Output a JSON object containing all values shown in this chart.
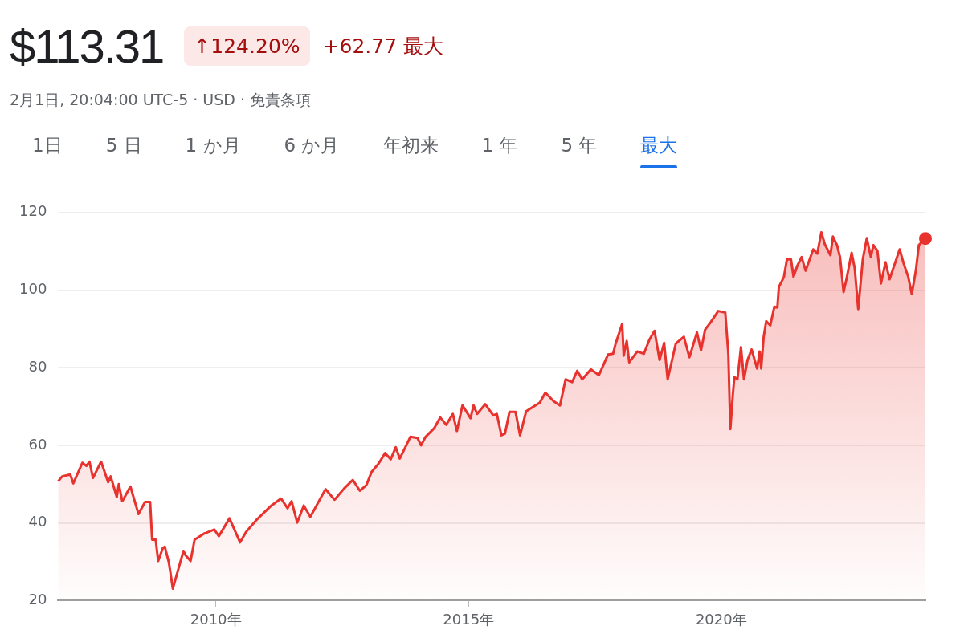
{
  "chart_data": {
    "type": "area",
    "title": "$113.31",
    "subtitle": "2月1日, 20:04:00 UTC-5 · USD · 免責条項",
    "annotations": [
      "↑124.20%",
      "+62.77 最大",
      "1日",
      "5 日",
      "1 か月",
      "6 か月",
      "年初来",
      "1 年",
      "5 年",
      "最大"
    ],
    "series": [
      {
        "color": "#e8322e",
        "x": [
          2006.88,
          2006.96,
          2007.12,
          2007.18,
          2007.36,
          2007.44,
          2007.5,
          2007.57,
          2007.73,
          2007.87,
          2007.92,
          2008.04,
          2008.08,
          2008.15,
          2008.31,
          2008.47,
          2008.6,
          2008.7,
          2008.74,
          2008.81,
          2008.86,
          2008.95,
          2008.99,
          2009.07,
          2009.15,
          2009.28,
          2009.36,
          2009.4,
          2009.5,
          2009.58,
          2009.76,
          2009.97,
          2010.06,
          2010.27,
          2010.48,
          2010.6,
          2010.82,
          2011.1,
          2011.29,
          2011.42,
          2011.5,
          2011.61,
          2011.74,
          2011.87,
          2012.17,
          2012.35,
          2012.54,
          2012.71,
          2012.85,
          2012.98,
          2013.08,
          2013.22,
          2013.35,
          2013.46,
          2013.56,
          2013.64,
          2013.85,
          2013.99,
          2014.06,
          2014.15,
          2014.32,
          2014.44,
          2014.56,
          2014.69,
          2014.77,
          2014.88,
          2015.04,
          2015.1,
          2015.17,
          2015.33,
          2015.49,
          2015.56,
          2015.65,
          2015.72,
          2015.81,
          2015.93,
          2016.02,
          2016.14,
          2016.41,
          2016.52,
          2016.68,
          2016.81,
          2016.92,
          2017.05,
          2017.15,
          2017.25,
          2017.42,
          2017.58,
          2017.76,
          2017.86,
          2017.91,
          2018.04,
          2018.07,
          2018.13,
          2018.18,
          2018.34,
          2018.47,
          2018.58,
          2018.68,
          2018.78,
          2018.87,
          2018.94,
          2019.1,
          2019.26,
          2019.37,
          2019.52,
          2019.6,
          2019.68,
          2019.79,
          2019.94,
          2020.08,
          2020.14,
          2020.18,
          2020.23,
          2020.26,
          2020.32,
          2020.39,
          2020.45,
          2020.52,
          2020.6,
          2020.71,
          2020.76,
          2020.79,
          2020.84,
          2020.89,
          2020.97,
          2021.05,
          2021.11,
          2021.14,
          2021.24,
          2021.3,
          2021.38,
          2021.43,
          2021.5,
          2021.59,
          2021.67,
          2021.82,
          2021.9,
          2021.98,
          2022.05,
          2022.16,
          2022.21,
          2022.29,
          2022.35,
          2022.42,
          2022.48,
          2022.58,
          2022.64,
          2022.71,
          2022.8,
          2022.88,
          2022.96,
          2023.01,
          2023.09,
          2023.16,
          2023.25,
          2023.33,
          2023.53,
          2023.61,
          2023.7,
          2023.77,
          2023.85,
          2023.91,
          2024.04
        ],
        "values": [
          50.7,
          52.0,
          52.5,
          50.2,
          55.5,
          54.7,
          55.8,
          51.6,
          55.8,
          50.5,
          52.0,
          46.7,
          50.0,
          45.6,
          49.4,
          42.3,
          45.4,
          45.4,
          35.7,
          35.7,
          30.2,
          33.5,
          33.9,
          29.9,
          23.1,
          29.1,
          32.8,
          31.7,
          30.2,
          35.7,
          37.2,
          38.3,
          36.6,
          41.2,
          35.0,
          37.7,
          41.0,
          44.5,
          46.3,
          43.8,
          45.6,
          40.1,
          44.5,
          41.6,
          48.7,
          46.0,
          48.9,
          51.1,
          48.3,
          49.8,
          53.1,
          55.3,
          58.0,
          56.4,
          59.5,
          56.6,
          62.2,
          61.9,
          60.0,
          62.2,
          64.4,
          67.2,
          65.3,
          68.1,
          63.7,
          70.3,
          67.0,
          70.3,
          68.1,
          70.6,
          67.7,
          68.1,
          62.6,
          63.0,
          68.6,
          68.6,
          62.6,
          68.8,
          71.0,
          73.6,
          71.4,
          70.3,
          77.0,
          76.3,
          79.2,
          77.0,
          79.6,
          78.1,
          83.4,
          83.6,
          86.2,
          91.3,
          83.1,
          86.9,
          81.4,
          84.2,
          83.6,
          87.3,
          89.5,
          82.0,
          86.4,
          77.0,
          86.2,
          88.0,
          82.7,
          89.1,
          84.5,
          89.8,
          91.7,
          94.6,
          94.2,
          83.6,
          64.2,
          73.2,
          77.6,
          77.0,
          85.3,
          77.0,
          82.0,
          84.7,
          79.8,
          84.2,
          79.8,
          88.0,
          92.0,
          90.9,
          95.7,
          95.5,
          100.8,
          103.4,
          107.9,
          107.9,
          103.4,
          106.1,
          108.5,
          105.0,
          110.5,
          109.4,
          114.9,
          111.8,
          109.0,
          113.8,
          111.6,
          108.5,
          99.5,
          103.0,
          109.6,
          105.7,
          95.1,
          107.9,
          113.4,
          108.5,
          111.6,
          110.1,
          101.7,
          107.2,
          102.8,
          110.5,
          106.8,
          103.4,
          99.0,
          105.0,
          111.6,
          113.3
        ]
      }
    ],
    "xlim": [
      2006.88,
      2024.04
    ],
    "xticks": [
      {
        "value": 2010,
        "label": "2010年"
      },
      {
        "value": 2015,
        "label": "2015年"
      },
      {
        "value": 2020,
        "label": "2020年"
      }
    ],
    "ylim": [
      20,
      120
    ],
    "yticks": [
      20,
      40,
      60,
      80,
      100,
      120
    ],
    "grid": "y",
    "legend": false
  }
}
